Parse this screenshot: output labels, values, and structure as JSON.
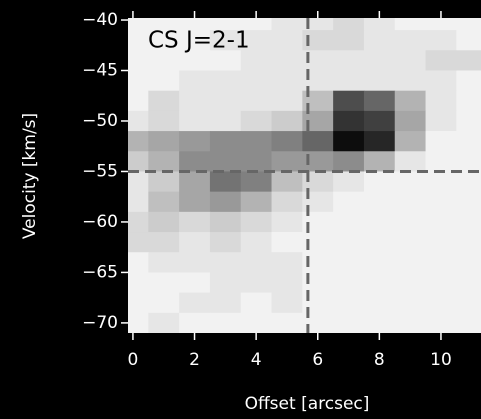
{
  "chart_data": {
    "type": "heatmap",
    "title": "CS J=2-1",
    "xlabel": "Offset [arcsec]",
    "ylabel": "Velocity [km/s]",
    "x": [
      0,
      1,
      2,
      3,
      4,
      5,
      6,
      7,
      8,
      9,
      10,
      11
    ],
    "y": [
      -40,
      -42,
      -44,
      -46,
      -48,
      -50,
      -52,
      -54,
      -56,
      -58,
      -60,
      -62,
      -64,
      -66,
      -68,
      -70
    ],
    "z": [
      [
        0.05,
        0.05,
        0.05,
        0.05,
        0.05,
        0.1,
        0.1,
        0.15,
        0.1,
        0.05,
        0.05,
        0.05
      ],
      [
        0.05,
        0.05,
        0.05,
        0.1,
        0.1,
        0.1,
        0.15,
        0.15,
        0.1,
        0.1,
        0.1,
        0.05
      ],
      [
        0.05,
        0.05,
        0.05,
        0.05,
        0.1,
        0.1,
        0.1,
        0.1,
        0.1,
        0.1,
        0.15,
        0.15
      ],
      [
        0.05,
        0.05,
        0.1,
        0.1,
        0.1,
        0.1,
        0.1,
        0.1,
        0.1,
        0.1,
        0.1,
        0.05
      ],
      [
        0.05,
        0.15,
        0.1,
        0.1,
        0.1,
        0.1,
        0.25,
        0.7,
        0.6,
        0.3,
        0.1,
        0.05
      ],
      [
        0.1,
        0.15,
        0.1,
        0.1,
        0.15,
        0.2,
        0.35,
        0.8,
        0.75,
        0.35,
        0.1,
        0.05
      ],
      [
        0.3,
        0.35,
        0.4,
        0.45,
        0.45,
        0.5,
        0.6,
        0.95,
        0.85,
        0.3,
        0.05,
        0.05
      ],
      [
        0.2,
        0.3,
        0.45,
        0.45,
        0.45,
        0.4,
        0.4,
        0.45,
        0.3,
        0.1,
        0.05,
        0.05
      ],
      [
        0.1,
        0.2,
        0.35,
        0.55,
        0.5,
        0.25,
        0.15,
        0.1,
        0.05,
        0.05,
        0.05,
        0.05
      ],
      [
        0.1,
        0.25,
        0.35,
        0.4,
        0.3,
        0.15,
        0.1,
        0.05,
        0.05,
        0.05,
        0.05,
        0.05
      ],
      [
        0.15,
        0.2,
        0.15,
        0.2,
        0.15,
        0.1,
        0.05,
        0.05,
        0.05,
        0.05,
        0.05,
        0.05
      ],
      [
        0.15,
        0.15,
        0.1,
        0.15,
        0.1,
        0.05,
        0.05,
        0.05,
        0.05,
        0.05,
        0.05,
        0.05
      ],
      [
        0.05,
        0.1,
        0.1,
        0.1,
        0.1,
        0.1,
        0.05,
        0.05,
        0.05,
        0.05,
        0.05,
        0.05
      ],
      [
        0.05,
        0.05,
        0.05,
        0.1,
        0.1,
        0.1,
        0.05,
        0.05,
        0.05,
        0.05,
        0.05,
        0.05
      ],
      [
        0.05,
        0.05,
        0.1,
        0.1,
        0.05,
        0.1,
        0.05,
        0.05,
        0.05,
        0.05,
        0.05,
        0.05
      ],
      [
        0.05,
        0.1,
        0.05,
        0.05,
        0.05,
        0.05,
        0.05,
        0.05,
        0.05,
        0.05,
        0.05,
        0.05
      ]
    ],
    "colormap": "gray_r",
    "xlim": [
      -0.16,
      11.3
    ],
    "ylim": [
      -39.8,
      -71
    ],
    "xticks": [
      0,
      2,
      4,
      6,
      8,
      10
    ],
    "yticks": [
      {
        "value": -40,
        "label": "−40"
      },
      {
        "value": -45,
        "label": "−45"
      },
      {
        "value": -50,
        "label": "−50"
      },
      {
        "value": -55,
        "label": "−55"
      },
      {
        "value": -60,
        "label": "−60"
      },
      {
        "value": -65,
        "label": "−65"
      },
      {
        "value": -70,
        "label": "−70"
      }
    ],
    "vline": 5.68,
    "hline": -55,
    "line_color": "#666666"
  }
}
